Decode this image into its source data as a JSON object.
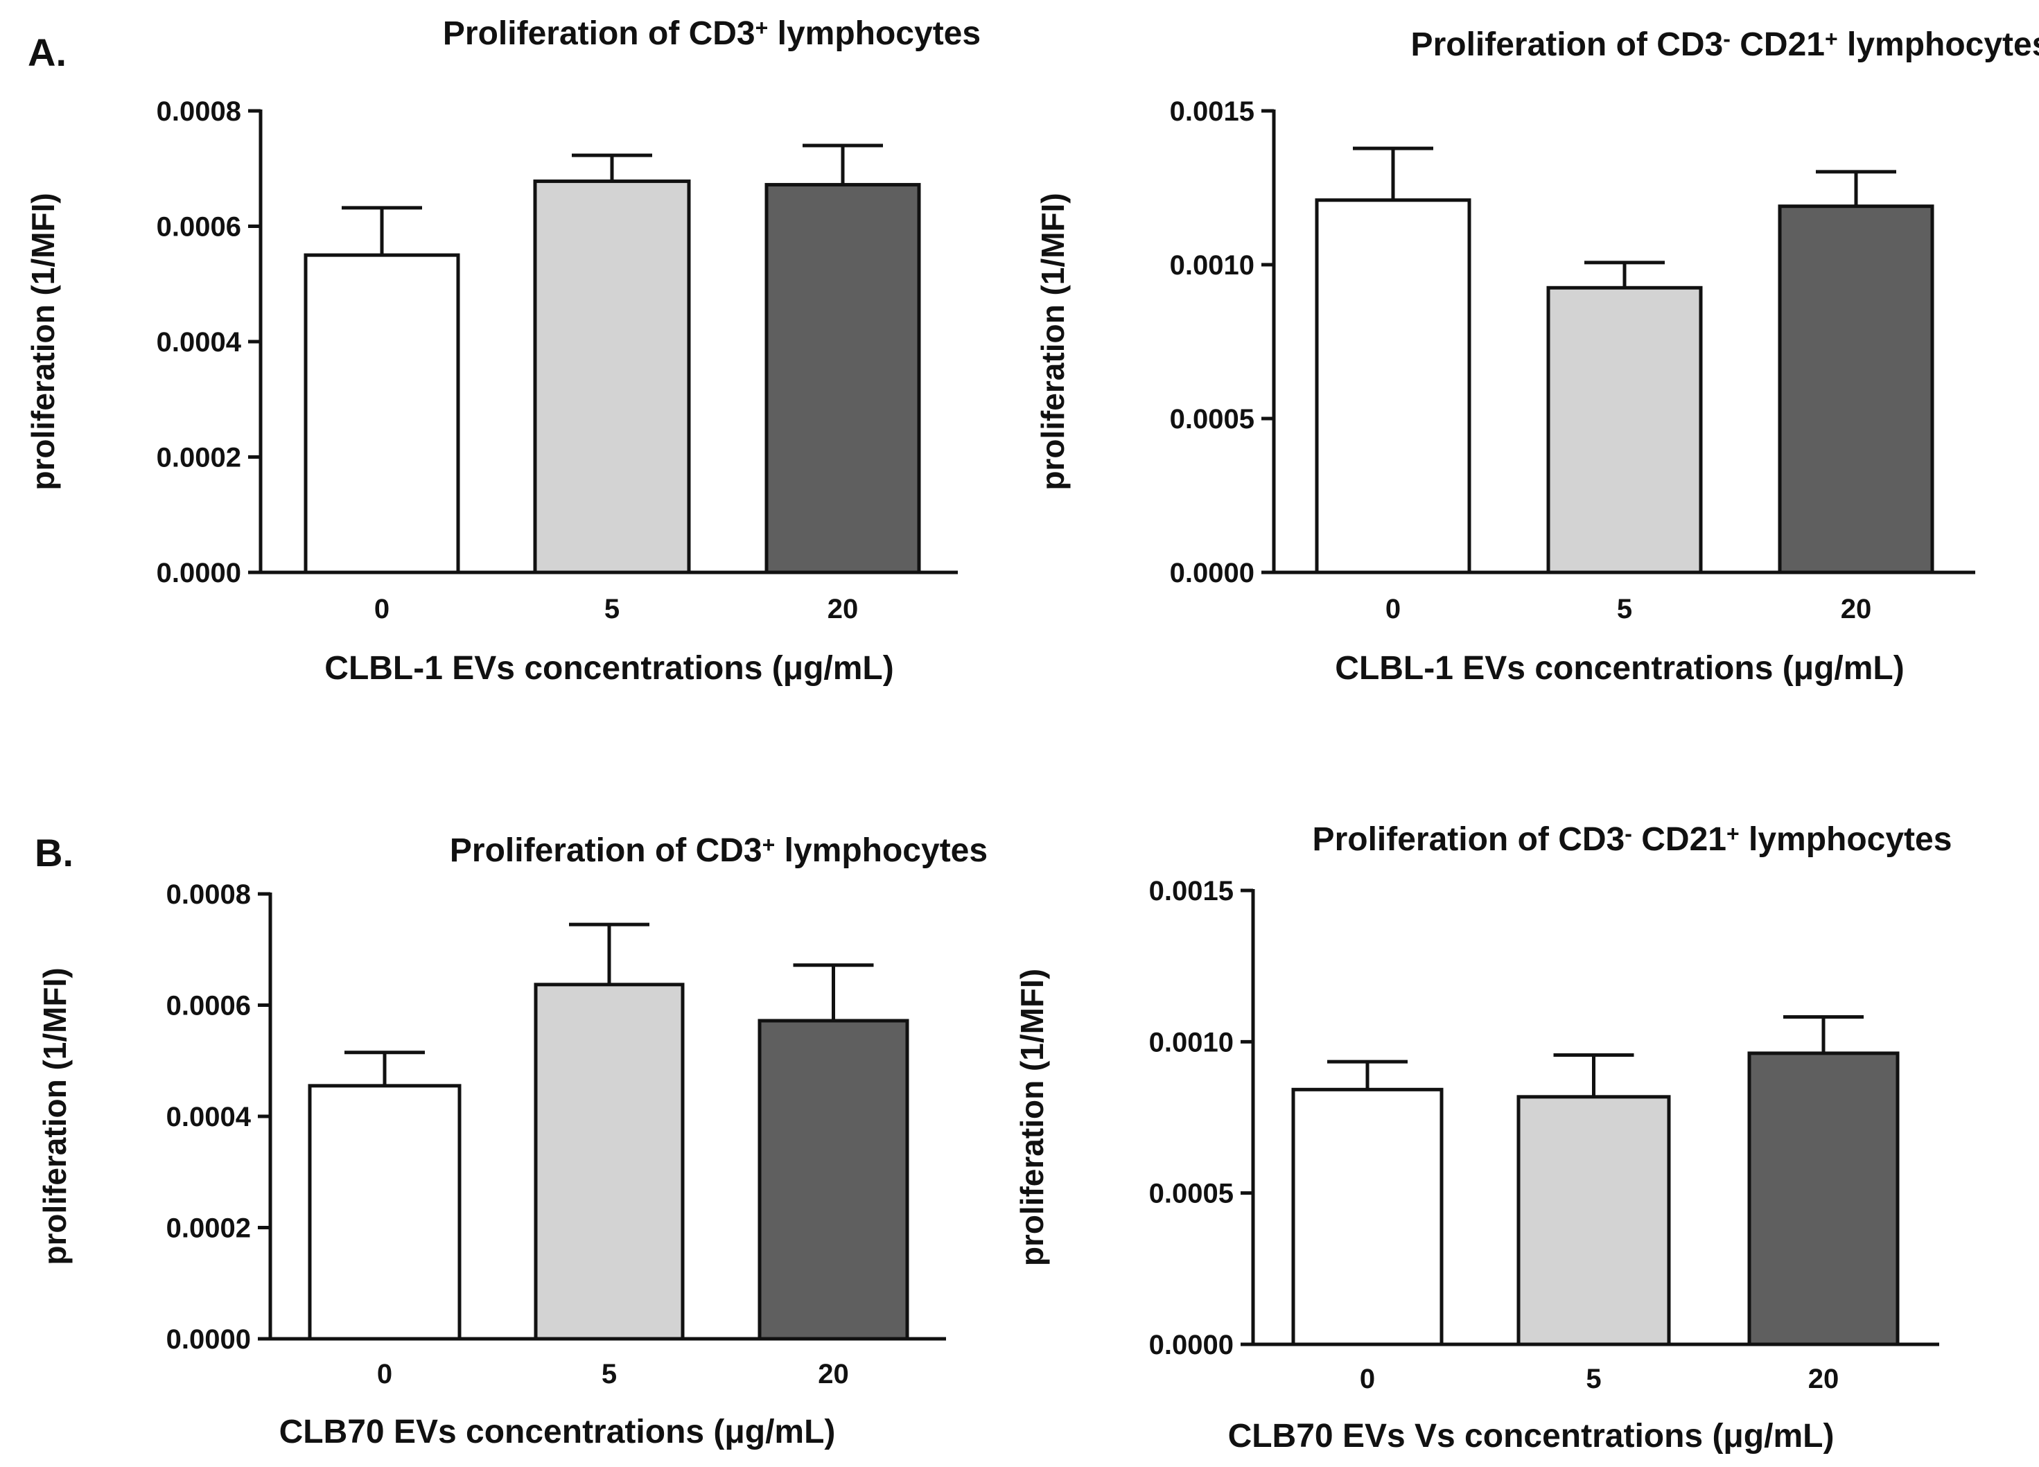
{
  "chart_data": [
    {
      "type": "bar",
      "panel_label": "A.",
      "title": {
        "main": "Proliferation of CD3",
        "sup1": "+",
        "rest": " lymphocytes"
      },
      "xlabel": "CLBL-1 EVs concentrations (μg/mL)",
      "ylabel": "proliferation (1/MFI)",
      "categories": [
        "0",
        "5",
        "20"
      ],
      "values": [
        0.00055,
        0.000678,
        0.000672
      ],
      "errors": [
        8.2e-05,
        4.5e-05,
        6.8e-05
      ],
      "bar_colors": [
        "#ffffff",
        "#d3d3d3",
        "#5f5f5f"
      ],
      "ylim": [
        0,
        0.0008
      ],
      "yticks": [
        "0.0000",
        "0.0002",
        "0.0004",
        "0.0006",
        "0.0008"
      ],
      "ytick_values": [
        0,
        0.0002,
        0.0004,
        0.0006,
        0.0008
      ],
      "grid": false
    },
    {
      "type": "bar",
      "panel_label": "",
      "title": {
        "main": "Proliferation of CD3",
        "sup1": "-",
        "mid": " CD21",
        "sup2": "+",
        "rest": " lymphocytes"
      },
      "xlabel": "CLBL-1 EVs  concentrations (μg/mL)",
      "ylabel": "proliferation (1/MFI)",
      "categories": [
        "0",
        "5",
        "20"
      ],
      "values": [
        0.00121,
        0.000925,
        0.00119
      ],
      "errors": [
        0.000168,
        8.2e-05,
        0.000112
      ],
      "bar_colors": [
        "#ffffff",
        "#d3d3d3",
        "#5f5f5f"
      ],
      "ylim": [
        0,
        0.0015
      ],
      "yticks": [
        "0.0000",
        "0.0005",
        "0.0010",
        "0.0015"
      ],
      "ytick_values": [
        0,
        0.0005,
        0.001,
        0.0015
      ],
      "grid": false
    },
    {
      "type": "bar",
      "panel_label": "B.",
      "title": {
        "main": "Proliferation of CD3",
        "sup1": "+",
        "rest": " lymphocytes"
      },
      "xlabel": "CLB70 EVs  concentrations (μg/mL)",
      "ylabel": "proliferation (1/MFI)",
      "categories": [
        "0",
        "5",
        "20"
      ],
      "values": [
        0.000455,
        0.000637,
        0.000572
      ],
      "errors": [
        6e-05,
        0.000108,
        0.0001
      ],
      "bar_colors": [
        "#ffffff",
        "#d3d3d3",
        "#5f5f5f"
      ],
      "ylim": [
        0,
        0.0008
      ],
      "yticks": [
        "0.0000",
        "0.0002",
        "0.0004",
        "0.0006",
        "0.0008"
      ],
      "ytick_values": [
        0,
        0.0002,
        0.0004,
        0.0006,
        0.0008
      ],
      "grid": false
    },
    {
      "type": "bar",
      "panel_label": "",
      "title": {
        "main": "Proliferation of CD3",
        "sup1": "-",
        "mid": " CD21",
        "sup2": "+",
        "rest": " lymphocytes"
      },
      "xlabel": "CLB70 EVs  Vs concentrations (μg/mL)",
      "ylabel": "proliferation (1/MFI)",
      "categories": [
        "0",
        "5",
        "20"
      ],
      "values": [
        0.000842,
        0.000818,
        0.000962
      ],
      "errors": [
        9.2e-05,
        0.000138,
        0.00012
      ],
      "bar_colors": [
        "#ffffff",
        "#d3d3d3",
        "#5f5f5f"
      ],
      "ylim": [
        0,
        0.0015
      ],
      "yticks": [
        "0.0000",
        "0.0005",
        "0.0010",
        "0.0015"
      ],
      "ytick_values": [
        0,
        0.0005,
        0.001,
        0.0015
      ],
      "grid": false
    }
  ]
}
